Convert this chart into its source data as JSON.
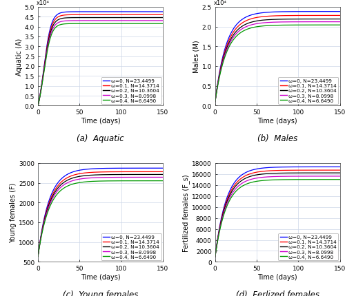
{
  "panels": [
    {
      "label": "(a)  Aquatic",
      "ylabel": "Aquatic (A)",
      "xlabel": "Time (days)",
      "ylim": [
        0,
        5
      ],
      "xlim": [
        0,
        150
      ],
      "yticks": [
        0,
        0.5,
        1.0,
        1.5,
        2.0,
        2.5,
        3.0,
        3.5,
        4.0,
        4.5,
        5.0
      ],
      "xticks": [
        0,
        50,
        100,
        150
      ],
      "scale_label": "x10⁴",
      "scale_factor": 10000,
      "comp": "aquatic"
    },
    {
      "label": "(b)  Males",
      "ylabel": "Males (M)",
      "xlabel": "Time (days)",
      "ylim": [
        0,
        2.5
      ],
      "xlim": [
        0,
        150
      ],
      "yticks": [
        0,
        0.5,
        1.0,
        1.5,
        2.0,
        2.5
      ],
      "xticks": [
        0,
        50,
        100,
        150
      ],
      "scale_label": "x10⁴",
      "scale_factor": 10000,
      "comp": "males"
    },
    {
      "label": "(c)  Young females",
      "ylabel": "Young females (F)",
      "xlabel": "Time (days)",
      "ylim": [
        500,
        3000
      ],
      "xlim": [
        0,
        150
      ],
      "yticks": [
        500,
        1000,
        1500,
        2000,
        2500,
        3000
      ],
      "xticks": [
        0,
        50,
        100,
        150
      ],
      "scale_label": "",
      "scale_factor": 1,
      "comp": "young"
    },
    {
      "label": "(d)  Ferlized females",
      "ylabel": "Fertilized females (F_s)",
      "xlabel": "Time (days)",
      "ylim": [
        0,
        18000
      ],
      "xlim": [
        0,
        150
      ],
      "yticks": [
        0,
        2000,
        4000,
        6000,
        8000,
        10000,
        12000,
        14000,
        16000,
        18000
      ],
      "xticks": [
        0,
        50,
        100,
        150
      ],
      "scale_label": "",
      "scale_factor": 1,
      "comp": "fert"
    }
  ],
  "series": [
    {
      "mu_l": 0.0,
      "color": "#0000ff",
      "label": "ω=0, N=23.4499",
      "aquatic_K": 47500,
      "males_K": 23800,
      "young_K": 2870,
      "fert_K": 17300,
      "r_aq": 0.09,
      "r_m": 0.075,
      "r_y": 0.075,
      "r_f": 0.075
    },
    {
      "mu_l": 0.1,
      "color": "#ff0000",
      "label": "ω=0.1, N=14.3714",
      "aquatic_K": 46000,
      "males_K": 22800,
      "young_K": 2780,
      "fert_K": 16700,
      "r_aq": 0.09,
      "r_m": 0.075,
      "r_y": 0.075,
      "r_f": 0.075
    },
    {
      "mu_l": 0.2,
      "color": "#000000",
      "label": "ω=0.2, N=10.3604",
      "aquatic_K": 44500,
      "males_K": 21900,
      "young_K": 2710,
      "fert_K": 16200,
      "r_aq": 0.09,
      "r_m": 0.075,
      "r_y": 0.075,
      "r_f": 0.075
    },
    {
      "mu_l": 0.3,
      "color": "#cc00cc",
      "label": "ω=0.3, N=8.0998",
      "aquatic_K": 43000,
      "males_K": 21200,
      "young_K": 2640,
      "fert_K": 15600,
      "r_aq": 0.09,
      "r_m": 0.075,
      "r_y": 0.075,
      "r_f": 0.075
    },
    {
      "mu_l": 0.4,
      "color": "#009900",
      "label": "ω=0.4, N=6.6490",
      "aquatic_K": 41500,
      "males_K": 20400,
      "young_K": 2550,
      "fert_K": 15000,
      "r_aq": 0.09,
      "r_m": 0.075,
      "r_y": 0.075,
      "r_f": 0.075
    }
  ],
  "aquatic_y0": 0,
  "males_y0": 900,
  "young_y0": 640,
  "fert_y0": 900,
  "background_color": "#ffffff",
  "grid_color": "#ccd6e8",
  "legend_fontsize": 5.2,
  "axis_label_fontsize": 7.0,
  "tick_fontsize": 6.5,
  "caption_fontsize": 8.5,
  "line_width": 0.9
}
